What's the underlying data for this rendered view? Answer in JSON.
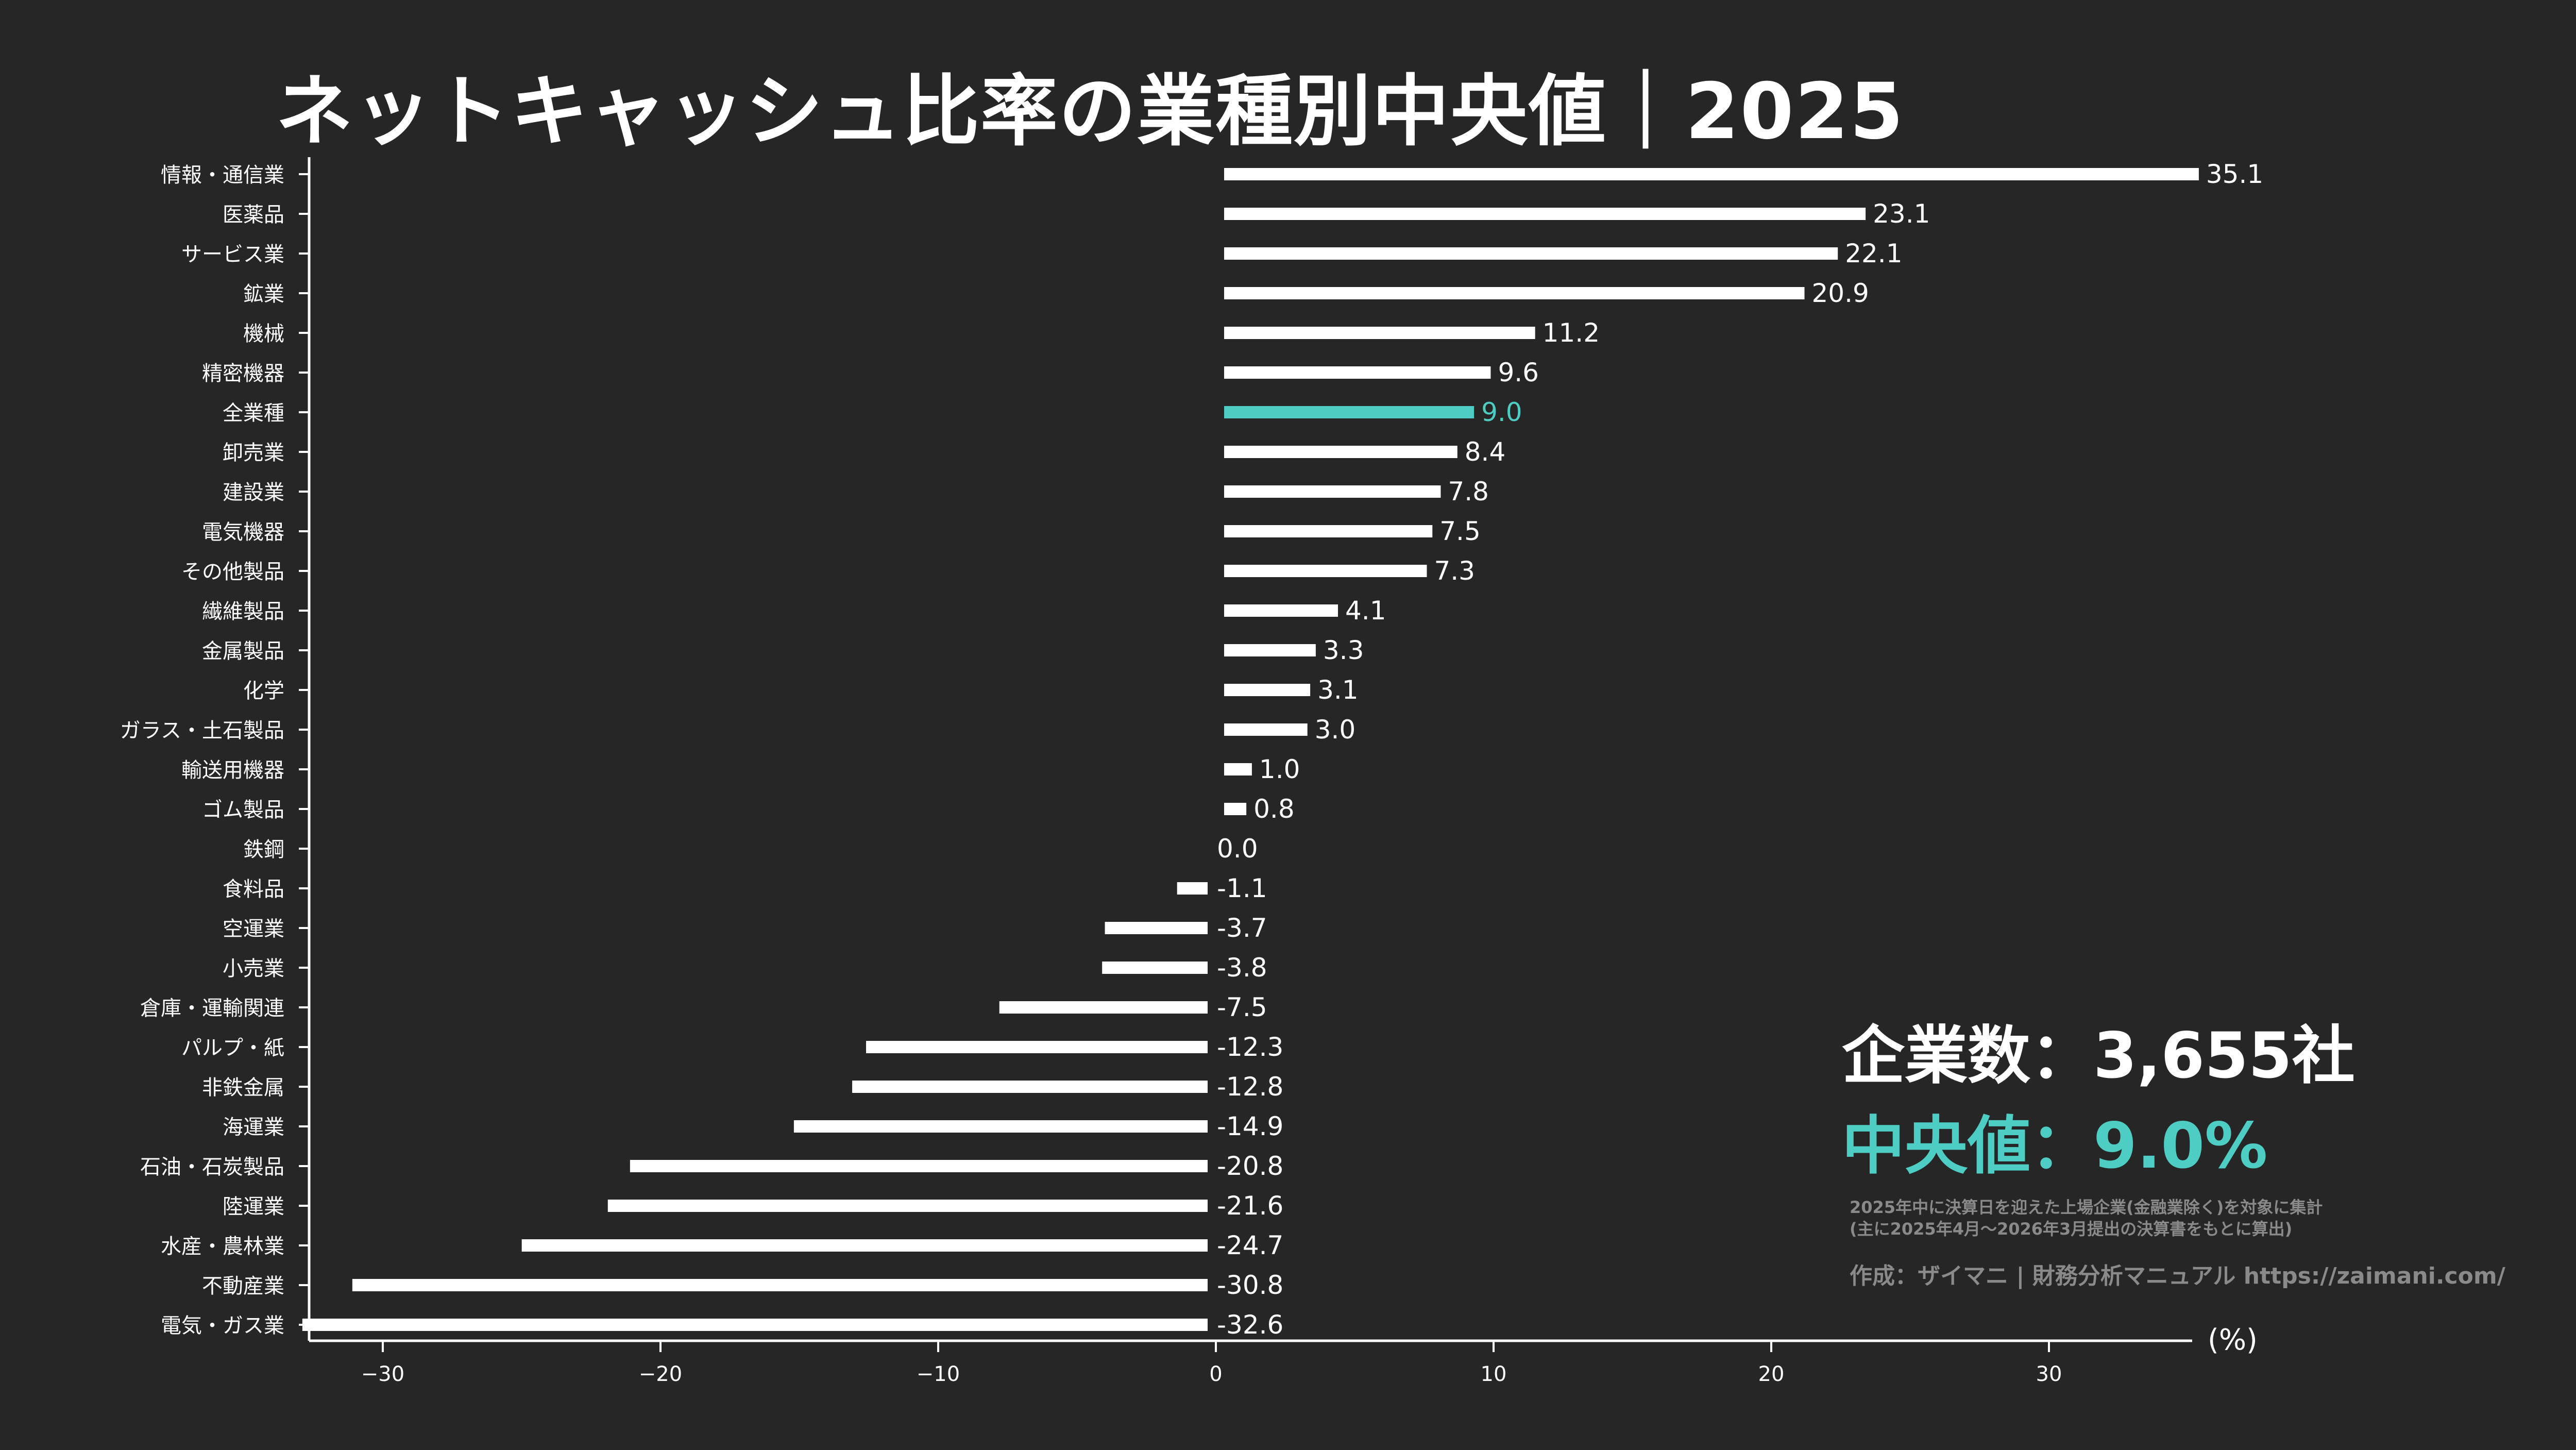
{
  "title": "ネットキャッシュ比率の業種別中央値｜2025",
  "summary": {
    "count": "企業数：3,655社",
    "median": "中央値：9.0%",
    "note_line1": "2025年中に決算日を迎えた上場企業(金融業除く)を対象に集計",
    "note_line2": "(主に2025年4月～2026年3月提出の決算書をもとに算出)",
    "credit": "作成：ザイマニ | 財務分析マニュアル https://zaimani.com/"
  },
  "colors": {
    "background": "#262626",
    "bar": "#ffffff",
    "highlight": "#4ecdc4",
    "note": "#8a8a8a"
  },
  "chart_data": {
    "type": "bar",
    "orientation": "horizontal",
    "unit_label": "(%)",
    "xlim": [
      -33,
      35.5
    ],
    "xticks": [
      -30,
      -20,
      -10,
      0,
      10,
      20,
      30
    ],
    "xtick_labels": [
      "−30",
      "−20",
      "−10",
      "0",
      "10",
      "20",
      "30"
    ],
    "highlight_category": "全業種",
    "categories": [
      "情報・通信業",
      "医薬品",
      "サービス業",
      "鉱業",
      "機械",
      "精密機器",
      "全業種",
      "卸売業",
      "建設業",
      "電気機器",
      "その他製品",
      "繊維製品",
      "金属製品",
      "化学",
      "ガラス・土石製品",
      "輸送用機器",
      "ゴム製品",
      "鉄鋼",
      "食料品",
      "空運業",
      "小売業",
      "倉庫・運輸関連",
      "パルプ・紙",
      "非鉄金属",
      "海運業",
      "石油・石炭製品",
      "陸運業",
      "水産・農林業",
      "不動産業",
      "電気・ガス業"
    ],
    "values": [
      35.1,
      23.1,
      22.1,
      20.9,
      11.2,
      9.6,
      9.0,
      8.4,
      7.8,
      7.5,
      7.3,
      4.1,
      3.3,
      3.1,
      3.0,
      1.0,
      0.8,
      0.0,
      -1.1,
      -3.7,
      -3.8,
      -7.5,
      -12.3,
      -12.8,
      -14.9,
      -20.8,
      -21.6,
      -24.7,
      -30.8,
      -32.6
    ],
    "value_labels": [
      "35.1",
      "23.1",
      "22.1",
      "20.9",
      "11.2",
      "9.6",
      "9.0",
      "8.4",
      "7.8",
      "7.5",
      "7.3",
      "4.1",
      "3.3",
      "3.1",
      "3.0",
      "1.0",
      "0.8",
      "0.0",
      "-1.1",
      "-3.7",
      "-3.8",
      "-7.5",
      "-12.3",
      "-12.8",
      "-14.9",
      "-20.8",
      "-21.6",
      "-24.7",
      "-30.8",
      "-32.6"
    ]
  }
}
